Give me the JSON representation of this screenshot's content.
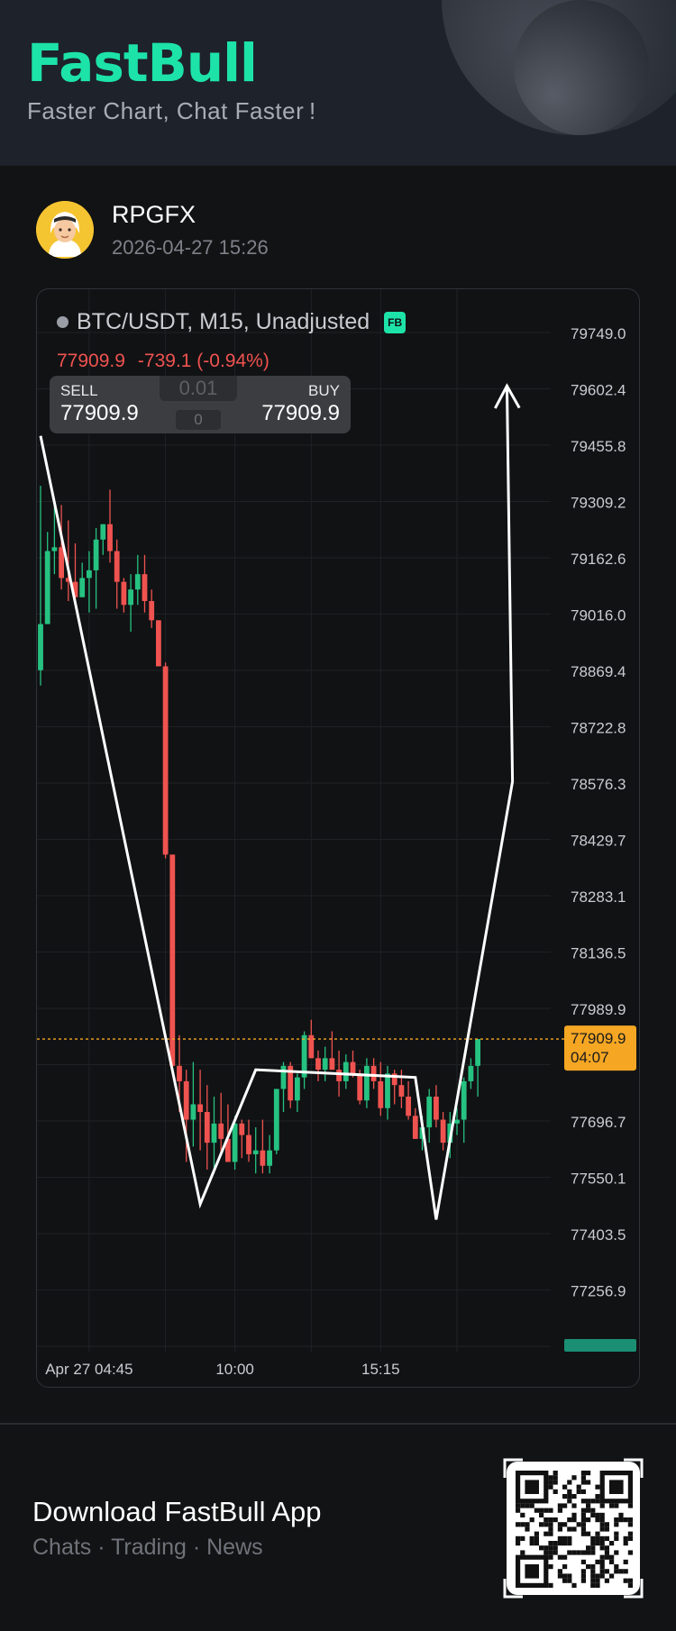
{
  "header": {
    "logo": "FastBull",
    "tagline": "Faster Chart, Chat Faster !"
  },
  "user": {
    "name": "RPGFX",
    "timestamp": "2026-04-27 15:26",
    "avatar_icon": "arab-man-avatar-icon"
  },
  "chart_data": {
    "type": "candlestick",
    "title": "BTC/USDT, M15, Unadjusted",
    "badge": "FB",
    "last_price": "77909.9",
    "change": "-739.1 (-0.94%)",
    "countdown": "04:07",
    "ylim": [
      77110.3,
      79895.6
    ],
    "y_ticks": [
      "79749.0",
      "79602.4",
      "79455.8",
      "79309.2",
      "79162.6",
      "79016.0",
      "78869.4",
      "78722.8",
      "78576.3",
      "78429.7",
      "78283.1",
      "78136.5",
      "77989.9",
      "77696.7",
      "77550.1",
      "77403.5",
      "77256.9"
    ],
    "x_ticks": [
      {
        "label": "Apr 27 04:45",
        "index": 7
      },
      {
        "label": "10:00",
        "index": 28
      },
      {
        "label": "15:15",
        "index": 49
      }
    ],
    "bar_count": 64,
    "up_color": "#26c281",
    "down_color": "#ef5350",
    "candles": [
      [
        78870,
        79350,
        78830,
        78990
      ],
      [
        78990,
        79230,
        78990,
        79180
      ],
      [
        79180,
        79300,
        79120,
        79190
      ],
      [
        79190,
        79300,
        79080,
        79110
      ],
      [
        79110,
        79260,
        79050,
        79100
      ],
      [
        79100,
        79200,
        79050,
        79060
      ],
      [
        79060,
        79150,
        79060,
        79110
      ],
      [
        79110,
        79180,
        79020,
        79130
      ],
      [
        79130,
        79240,
        79030,
        79210
      ],
      [
        79210,
        79250,
        79170,
        79250
      ],
      [
        79250,
        79340,
        79150,
        79180
      ],
      [
        79180,
        79210,
        79030,
        79100
      ],
      [
        79100,
        79110,
        79020,
        79040
      ],
      [
        79040,
        79120,
        78970,
        79080
      ],
      [
        79080,
        79170,
        79040,
        79120
      ],
      [
        79120,
        79170,
        79020,
        79050
      ],
      [
        79050,
        79080,
        78980,
        79000
      ],
      [
        79000,
        79000,
        78880,
        78880
      ],
      [
        78880,
        78890,
        78380,
        78390
      ],
      [
        78390,
        78390,
        77840,
        77840
      ],
      [
        77840,
        77920,
        77720,
        77800
      ],
      [
        77800,
        77830,
        77590,
        77700
      ],
      [
        77700,
        77850,
        77630,
        77740
      ],
      [
        77740,
        77830,
        77620,
        77720
      ],
      [
        77720,
        77790,
        77570,
        77640
      ],
      [
        77640,
        77760,
        77560,
        77690
      ],
      [
        77690,
        77770,
        77610,
        77650
      ],
      [
        77650,
        77740,
        77590,
        77590
      ],
      [
        77590,
        77710,
        77570,
        77690
      ],
      [
        77690,
        77700,
        77600,
        77660
      ],
      [
        77660,
        77700,
        77590,
        77610
      ],
      [
        77610,
        77680,
        77560,
        77620
      ],
      [
        77620,
        77700,
        77560,
        77580
      ],
      [
        77580,
        77660,
        77560,
        77620
      ],
      [
        77620,
        77780,
        77610,
        77780
      ],
      [
        77780,
        77850,
        77720,
        77840
      ],
      [
        77840,
        77850,
        77730,
        77750
      ],
      [
        77750,
        77820,
        77720,
        77810
      ],
      [
        77810,
        77930,
        77780,
        77920
      ],
      [
        77920,
        77960,
        77860,
        77860
      ],
      [
        77860,
        77880,
        77800,
        77830
      ],
      [
        77830,
        77890,
        77800,
        77860
      ],
      [
        77860,
        77930,
        77830,
        77830
      ],
      [
        77830,
        77880,
        77760,
        77800
      ],
      [
        77800,
        77870,
        77780,
        77850
      ],
      [
        77850,
        77880,
        77810,
        77820
      ],
      [
        77820,
        77830,
        77740,
        77750
      ],
      [
        77750,
        77860,
        77730,
        77840
      ],
      [
        77840,
        77860,
        77780,
        77800
      ],
      [
        77800,
        77850,
        77710,
        77730
      ],
      [
        77730,
        77840,
        77700,
        77820
      ],
      [
        77820,
        77830,
        77740,
        77790
      ],
      [
        77790,
        77830,
        77730,
        77760
      ],
      [
        77760,
        77800,
        77700,
        77710
      ],
      [
        77710,
        77730,
        77650,
        77650
      ],
      [
        77650,
        77710,
        77620,
        77680
      ],
      [
        77680,
        77780,
        77640,
        77760
      ],
      [
        77760,
        77790,
        77680,
        77700
      ],
      [
        77700,
        77720,
        77620,
        77640
      ],
      [
        77640,
        77720,
        77600,
        77690
      ],
      [
        77690,
        77730,
        77660,
        77700
      ],
      [
        77700,
        77810,
        77640,
        77800
      ],
      [
        77800,
        77860,
        77780,
        77840
      ],
      [
        77840,
        77910,
        77760,
        77909.9
      ]
    ],
    "drawing": {
      "color": "#ffffff",
      "points": [
        [
          0,
          79480
        ],
        [
          23,
          77480
        ],
        [
          31,
          77830
        ],
        [
          54,
          77810
        ],
        [
          57,
          77440
        ],
        [
          68,
          78580
        ],
        [
          67.2,
          79610
        ]
      ],
      "arrow_head": true
    }
  },
  "trade_panel": {
    "sell_label": "SELL",
    "sell_price": "77909.9",
    "buy_label": "BUY",
    "buy_price": "77909.9",
    "lot": "0.01",
    "spread": "0"
  },
  "footer": {
    "title": "Download FastBull App",
    "subtitle": "Chats · Trading · News",
    "qr_icon": "qr-code-icon"
  }
}
